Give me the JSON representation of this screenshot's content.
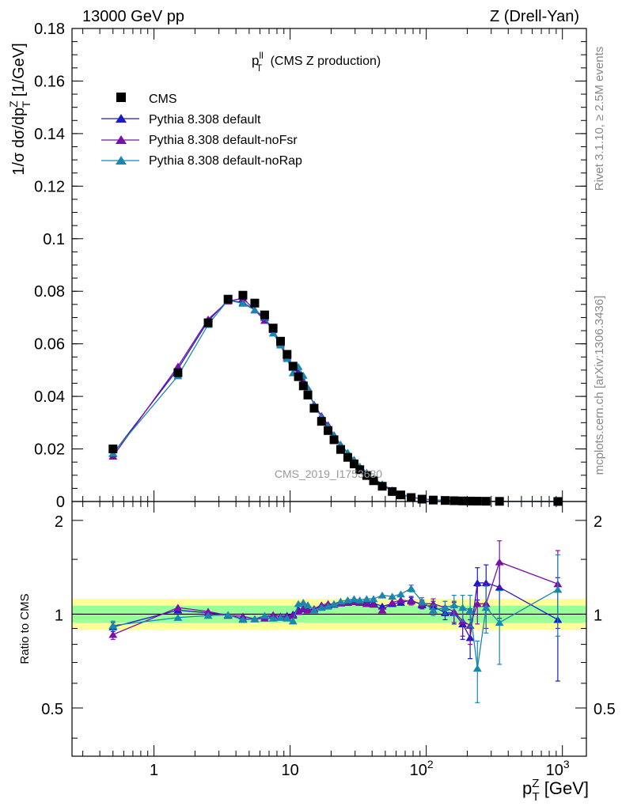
{
  "header": {
    "left": "13000 GeV pp",
    "right": "Z (Drell-Yan)"
  },
  "side": {
    "rivet": "Rivet 3.1.10, ≥ 2.5M events",
    "mcplots": "mcplots.cern.ch [arXiv:1306.3436]"
  },
  "chart_data": {
    "type": "scatter",
    "title_main": "p",
    "title_sup": "ll",
    "title_sub": "T",
    "title_rest": " (CMS Z production)",
    "watermark": "CMS_2019_I1753680",
    "ylabel_top": "1/σ dσ/dp",
    "ylabel_sup": "Z",
    "ylabel_sub": "T",
    "ylabel_unit": " [1/GeV]",
    "ylabel_bottom": "Ratio to CMS",
    "xlabel_main": "p",
    "xlabel_sup": "Z",
    "xlabel_sub": "T",
    "xlabel_unit": " [GeV]",
    "x_scale": "log",
    "xlim": [
      0.25,
      1500
    ],
    "ylim_top": [
      0,
      0.18
    ],
    "ylim_bottom": [
      0.35,
      2.3
    ],
    "yticks_top": [
      "0",
      "0.02",
      "0.04",
      "0.06",
      "0.08",
      "0.1",
      "0.12",
      "0.14",
      "0.16",
      "0.18"
    ],
    "yticks_bottom": [
      "0.5",
      "1",
      "2"
    ],
    "xticks": [
      "1",
      "10",
      "10",
      "10"
    ],
    "xtick_exps": [
      "",
      "",
      "2",
      "3"
    ],
    "legend_position": "top-left",
    "colors": {
      "data": "#000000",
      "default": "#1a1acc",
      "noFsr": "#7b10a8",
      "noRap": "#1a87ae",
      "band_outer": "#ffff99",
      "band_inner": "#99ff99"
    },
    "x": [
      0.5,
      1.5,
      2.5,
      3.5,
      4.5,
      5.5,
      6.5,
      7.5,
      8.5,
      9.5,
      10.5,
      11.5,
      12.5,
      13.5,
      15,
      17,
      19,
      21,
      23.5,
      26.5,
      29.5,
      32.5,
      36.5,
      41,
      47.5,
      56.25,
      65,
      77.5,
      93,
      112.5,
      137.5,
      160,
      185,
      210,
      237.5,
      275,
      345,
      925
    ],
    "data_values": [
      0.02,
      0.049,
      0.068,
      0.077,
      0.0785,
      0.0755,
      0.071,
      0.066,
      0.061,
      0.056,
      0.0515,
      0.0475,
      0.044,
      0.0405,
      0.0355,
      0.0305,
      0.027,
      0.0235,
      0.0198,
      0.0168,
      0.0143,
      0.0121,
      0.0099,
      0.0079,
      0.0058,
      0.0038,
      0.0025,
      0.0015,
      0.0009,
      0.00055,
      0.0004,
      0.0003,
      0.00022,
      0.00017,
      0.00014,
      0.0001,
      6e-05,
      1e-05
    ],
    "series": [
      {
        "name": "Pythia 8.308 default",
        "ratio": [
          0.91,
          1.03,
          1.01,
          0.995,
          0.965,
          0.965,
          0.985,
          0.99,
          0.985,
          0.99,
          1.0,
          1.035,
          1.04,
          1.035,
          1.04,
          1.06,
          1.07,
          1.075,
          1.085,
          1.09,
          1.095,
          1.09,
          1.095,
          1.085,
          1.06,
          1.08,
          1.09,
          1.11,
          1.07,
          1.06,
          1.01,
          1.01,
          0.93,
          0.84,
          1.26,
          1.26,
          1.22,
          0.96
        ],
        "err": [
          0.03,
          0.02,
          0.02,
          0.02,
          0.02,
          0.02,
          0.02,
          0.02,
          0.02,
          0.02,
          0.02,
          0.02,
          0.02,
          0.02,
          0.02,
          0.02,
          0.02,
          0.02,
          0.02,
          0.02,
          0.02,
          0.02,
          0.02,
          0.02,
          0.02,
          0.02,
          0.02,
          0.03,
          0.03,
          0.04,
          0.05,
          0.08,
          0.1,
          0.12,
          0.15,
          0.18,
          0.25,
          0.35
        ]
      },
      {
        "name": "Pythia 8.308 default-noFsr",
        "ratio": [
          0.86,
          1.05,
          1.02,
          0.99,
          0.985,
          0.965,
          0.97,
          0.995,
          0.985,
          0.98,
          0.99,
          1.02,
          1.045,
          1.03,
          1.04,
          1.07,
          1.08,
          1.075,
          1.085,
          1.09,
          1.095,
          1.09,
          1.08,
          1.075,
          1.03,
          1.09,
          1.11,
          1.1,
          1.08,
          1.08,
          1.05,
          1.02,
          0.95,
          0.92,
          1.08,
          1.08,
          1.47,
          1.25
        ],
        "err": [
          0.03,
          0.02,
          0.02,
          0.02,
          0.02,
          0.02,
          0.02,
          0.02,
          0.02,
          0.02,
          0.02,
          0.02,
          0.02,
          0.02,
          0.02,
          0.02,
          0.02,
          0.02,
          0.02,
          0.02,
          0.02,
          0.02,
          0.02,
          0.02,
          0.02,
          0.02,
          0.02,
          0.03,
          0.03,
          0.04,
          0.05,
          0.08,
          0.1,
          0.12,
          0.15,
          0.18,
          0.25,
          0.35
        ]
      },
      {
        "name": "Pythia 8.308 default-noRap",
        "ratio": [
          0.92,
          0.975,
          0.99,
          0.995,
          0.96,
          0.965,
          0.99,
          0.97,
          0.975,
          0.97,
          0.95,
          1.08,
          1.09,
          1.07,
          1.03,
          1.05,
          1.06,
          1.08,
          1.1,
          1.11,
          1.12,
          1.11,
          1.12,
          1.12,
          1.15,
          1.14,
          1.16,
          1.21,
          1.1,
          1.03,
          1.05,
          1.07,
          1.05,
          1.03,
          0.67,
          1.05,
          0.94,
          1.2
        ],
        "err": [
          0.03,
          0.02,
          0.02,
          0.02,
          0.02,
          0.02,
          0.02,
          0.02,
          0.02,
          0.02,
          0.02,
          0.02,
          0.02,
          0.02,
          0.02,
          0.02,
          0.02,
          0.02,
          0.02,
          0.02,
          0.02,
          0.02,
          0.02,
          0.02,
          0.02,
          0.02,
          0.02,
          0.03,
          0.03,
          0.04,
          0.05,
          0.08,
          0.1,
          0.12,
          0.15,
          0.18,
          0.25,
          0.35
        ]
      }
    ],
    "legend": [
      "CMS",
      "Pythia 8.308 default",
      "Pythia 8.308 default-noFsr",
      "Pythia 8.308 default-noRap"
    ]
  }
}
